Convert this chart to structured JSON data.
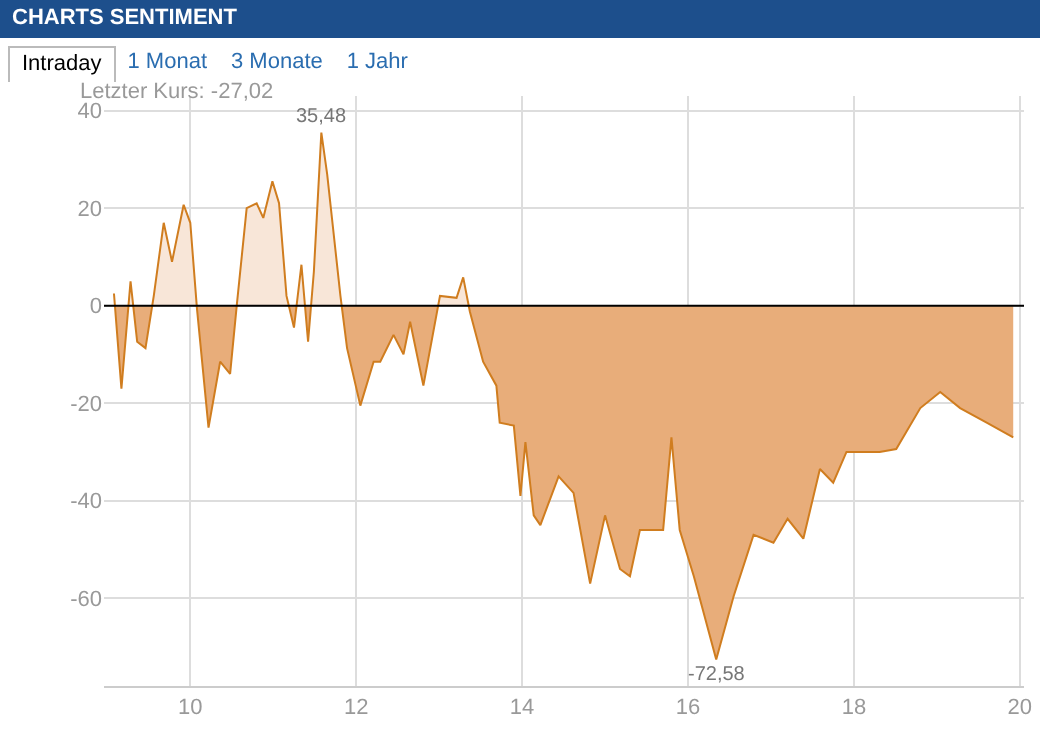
{
  "chart_data": {
    "type": "area",
    "title": "CHARTS SENTIMENT",
    "subtitle": "Letzter Kurs: -27,02",
    "annotations": [
      "Intraday",
      "1 Monat",
      "3 Monate",
      "1 Jahr",
      {
        "text": "35,48",
        "x": 11.58,
        "y": 35.48
      },
      {
        "text": "-72,58",
        "x": 16.34,
        "y": -72.58
      }
    ],
    "x": [
      9.08,
      9.17,
      9.28,
      9.36,
      9.46,
      9.56,
      9.68,
      9.78,
      9.92,
      10.0,
      10.08,
      10.22,
      10.36,
      10.48,
      10.56,
      10.68,
      10.8,
      10.88,
      10.99,
      11.07,
      11.16,
      11.25,
      11.34,
      11.42,
      11.49,
      11.58,
      11.65,
      11.81,
      11.89,
      12.05,
      12.21,
      12.29,
      12.45,
      12.57,
      12.65,
      12.81,
      13.01,
      13.21,
      13.29,
      13.37,
      13.53,
      13.69,
      13.73,
      13.9,
      13.98,
      14.04,
      14.14,
      14.22,
      14.44,
      14.62,
      14.82,
      15.0,
      15.18,
      15.3,
      15.42,
      15.7,
      15.8,
      15.9,
      16.07,
      16.34,
      16.55,
      16.79,
      17.03,
      17.2,
      17.39,
      17.59,
      17.75,
      17.91,
      18.31,
      18.51,
      18.8,
      19.04,
      19.28,
      19.6,
      19.92
    ],
    "series": [
      {
        "color": "#d07d1f",
        "values": [
          2.5,
          -17,
          5,
          -7.4,
          -8.7,
          2,
          17,
          9,
          20.7,
          17,
          -0.5,
          -25,
          -11.5,
          -14,
          0,
          20,
          21,
          18,
          25.5,
          21,
          2,
          -4.5,
          8.4,
          -7.4,
          7,
          35.48,
          27,
          2,
          -8.7,
          -20.5,
          -11.5,
          -11.5,
          -6,
          -10,
          -3.3,
          -16.4,
          2,
          1.6,
          5.8,
          -1.2,
          -11.5,
          -16.4,
          -24,
          -24.6,
          -39,
          -28,
          -43,
          -45,
          -35,
          -38.4,
          -57,
          -43,
          -54,
          -55.5,
          -46,
          -46,
          -27,
          -46,
          -55.5,
          -72.58,
          -59.6,
          -47,
          -48.6,
          -43.7,
          -47.8,
          -33.5,
          -36.3,
          -30,
          -30,
          -29.4,
          -21,
          -17.7,
          -21,
          -24,
          -27.02
        ]
      }
    ],
    "xlim": [
      8.96,
      20.05
    ],
    "xticks": [
      10,
      12,
      14,
      16,
      18,
      20
    ],
    "ylim": [
      -78,
      43
    ],
    "yticks": [
      -60,
      -40,
      -20,
      0,
      20,
      40
    ],
    "ref_lines": [
      {
        "axis": "y",
        "value": 0,
        "color": "#000000"
      }
    ],
    "grid": true
  }
}
